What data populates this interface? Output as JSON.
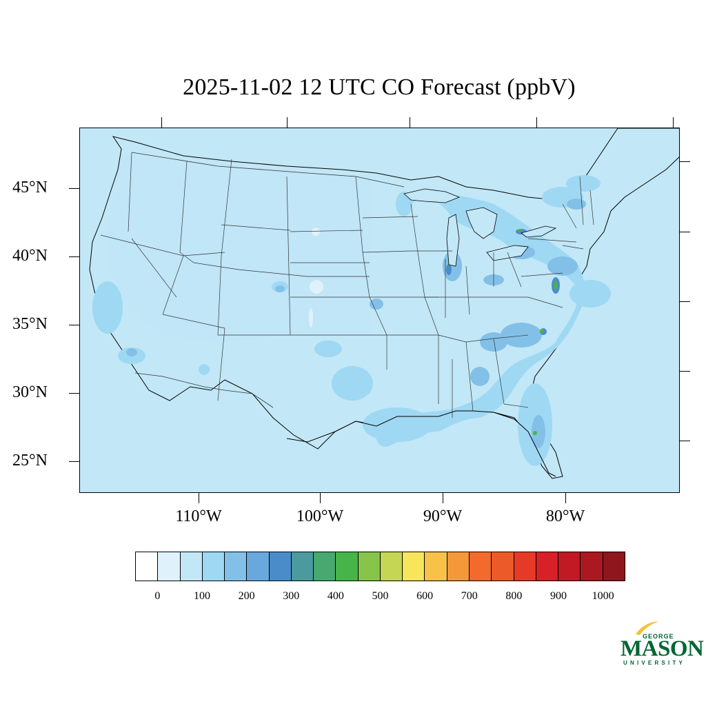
{
  "title": "2025-11-02 12 UTC CO Forecast (ppbV)",
  "lat_labels": [
    "45°N",
    "40°N",
    "35°N",
    "30°N",
    "25°N"
  ],
  "lon_labels": [
    "110°W",
    "100°W",
    "90°W",
    "80°W"
  ],
  "colorbar": {
    "colors": [
      "#ffffff",
      "#dff2fc",
      "#c2e7f7",
      "#9fd8f2",
      "#83c0e8",
      "#69a8dc",
      "#4a8cca",
      "#4a9a9e",
      "#47a870",
      "#47b44a",
      "#86c44a",
      "#c4d654",
      "#f7e55c",
      "#f7c14a",
      "#f5983a",
      "#f26a2c",
      "#ec5a2a",
      "#e63a28",
      "#d82028",
      "#c21a24",
      "#aa1820",
      "#8e161c"
    ],
    "labels": [
      "0",
      "100",
      "200",
      "300",
      "400",
      "500",
      "600",
      "700",
      "800",
      "900",
      "1000"
    ]
  },
  "logo": {
    "line1": "GEORGE",
    "line2": "MASON",
    "line3": "UNIVERSITY"
  }
}
